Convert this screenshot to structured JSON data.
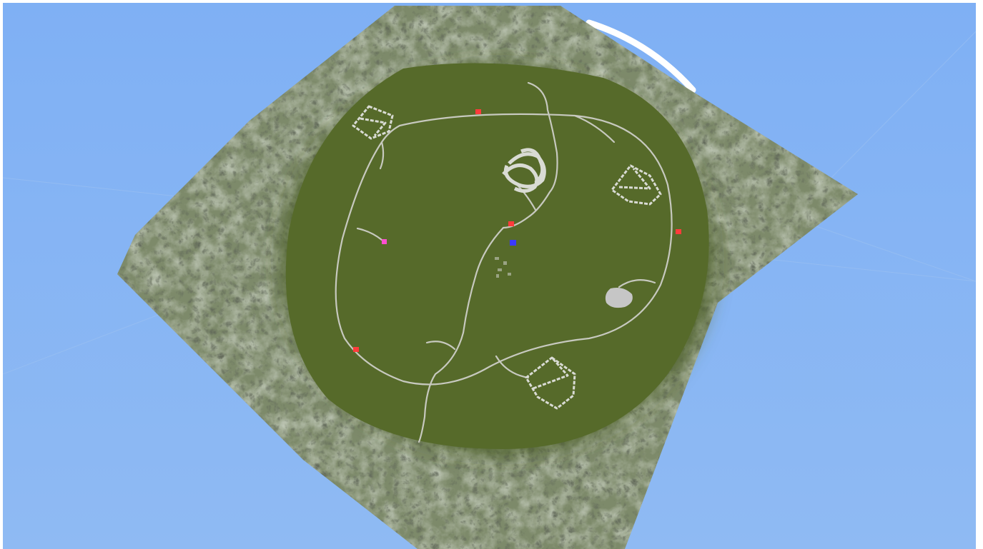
{
  "scene": {
    "view": "editor-viewport",
    "description_icon": "terrain-map",
    "colors": {
      "sky": "#7fb0f4",
      "sky_bottom": "#8fbaf3",
      "grid": "#9fc3f2",
      "mountain_dark": "#3d4630",
      "mountain_light": "#7d8a6a",
      "rock_highlight": "#c9cfc0",
      "meadow": "#566a2a",
      "meadow_edge": "#4c5e26",
      "road": "#c7c9bf",
      "track": "#d9dbd4",
      "flat_pad": "#c6c6c6",
      "skydome_edge": "#ffffff"
    },
    "markers": [
      {
        "name": "marker-red-north",
        "color": "#ff3b3b"
      },
      {
        "name": "marker-red-center",
        "color": "#ff3b3b"
      },
      {
        "name": "marker-red-east",
        "color": "#ff3b3b"
      },
      {
        "name": "marker-red-southwest",
        "color": "#ff3b3b"
      },
      {
        "name": "marker-magenta-west",
        "color": "#ff4fd0"
      },
      {
        "name": "marker-blue-center",
        "color": "#3a3aff"
      }
    ]
  }
}
